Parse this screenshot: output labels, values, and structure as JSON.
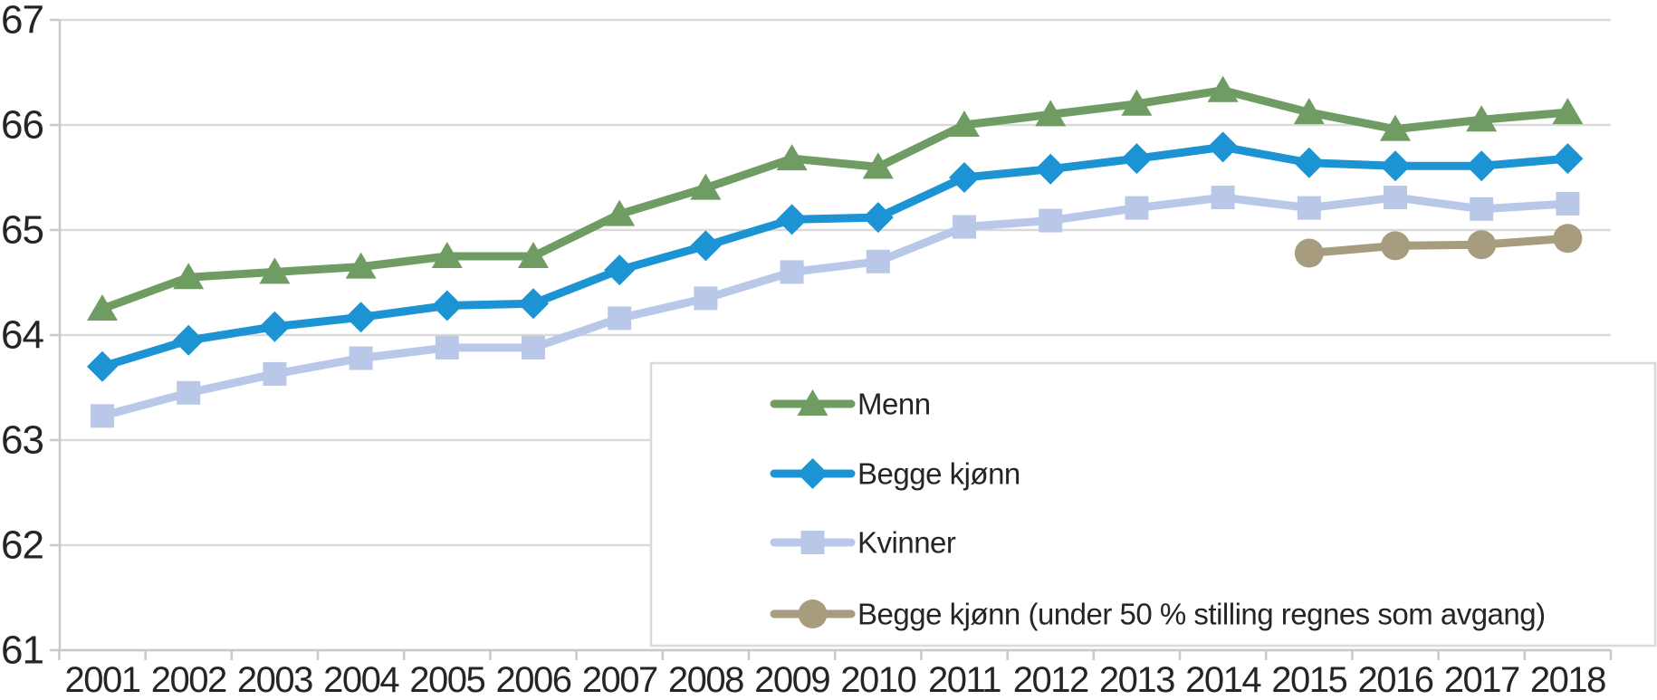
{
  "chart_data": {
    "type": "line",
    "title": "",
    "xlabel": "",
    "ylabel": "",
    "x": [
      2001,
      2002,
      2003,
      2004,
      2005,
      2006,
      2007,
      2008,
      2009,
      2010,
      2011,
      2012,
      2013,
      2014,
      2015,
      2016,
      2017,
      2018
    ],
    "series": [
      {
        "name": "Menn",
        "marker": "triangle",
        "color": "#6f9c63",
        "values": [
          64.25,
          64.55,
          64.6,
          64.65,
          64.75,
          64.75,
          65.15,
          65.4,
          65.68,
          65.6,
          66.0,
          66.1,
          66.2,
          66.33,
          66.12,
          65.96,
          66.05,
          66.12
        ]
      },
      {
        "name": "Begge kjønn",
        "marker": "diamond",
        "color": "#1c93d2",
        "values": [
          63.7,
          63.95,
          64.08,
          64.17,
          64.28,
          64.3,
          64.62,
          64.85,
          65.1,
          65.12,
          65.5,
          65.58,
          65.68,
          65.79,
          65.64,
          65.61,
          65.61,
          65.68
        ]
      },
      {
        "name": "Kvinner",
        "marker": "square",
        "color": "#b9c7e8",
        "values": [
          63.23,
          63.45,
          63.63,
          63.78,
          63.88,
          63.88,
          64.16,
          64.35,
          64.6,
          64.7,
          65.03,
          65.09,
          65.21,
          65.31,
          65.21,
          65.31,
          65.2,
          65.25
        ]
      },
      {
        "name": "Begge kjønn (under 50 % stilling regnes som avgang)",
        "marker": "circle",
        "color": "#a79d7e",
        "values": [
          null,
          null,
          null,
          null,
          null,
          null,
          null,
          null,
          null,
          null,
          null,
          null,
          null,
          null,
          64.78,
          64.85,
          64.86,
          64.92
        ]
      }
    ],
    "ylim": [
      61,
      67
    ],
    "yticks": [
      61,
      62,
      63,
      64,
      65,
      66,
      67
    ],
    "xtick_labels": [
      "2001",
      "2002",
      "2003",
      "2004",
      "2005",
      "2006",
      "2007",
      "2008",
      "2009",
      "2010",
      "2011",
      "2012",
      "2013",
      "2014",
      "2015",
      "2016",
      "2017",
      "2018"
    ],
    "grid": true,
    "legend_position": "bottom-right-overlay",
    "legend_entries": [
      "Menn",
      "Begge kjønn",
      "Kvinner",
      "Begge kjønn (under 50 % stilling regnes som avgang)"
    ],
    "colors": {
      "background": "#ffffff",
      "grid": "#d9d9d9",
      "axis": "#c9c9c9",
      "label": "#252525",
      "legend_border": "#d9d9d9",
      "legend_fill": "#ffffff"
    }
  }
}
